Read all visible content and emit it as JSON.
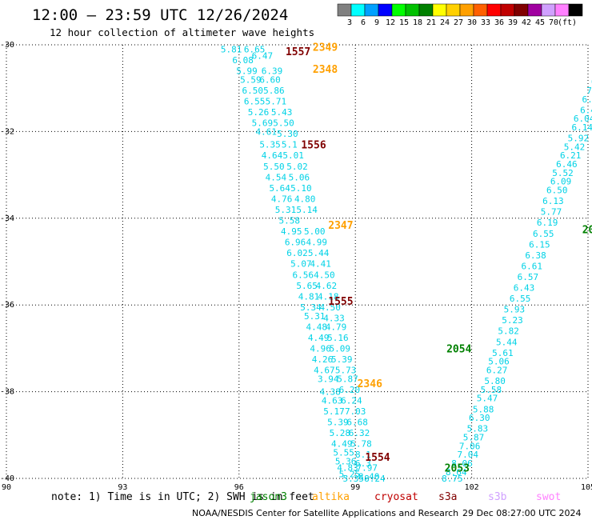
{
  "title": "12:00 – 23:59 UTC 12/26/2024",
  "subtitle": "12 hour collection of altimeter wave heights",
  "colorbar": {
    "colors": [
      "#808080",
      "#00ffff",
      "#00a0ff",
      "#0000ff",
      "#00ff00",
      "#00c000",
      "#008000",
      "#ffff00",
      "#ffd000",
      "#ffa000",
      "#ff6000",
      "#ff0000",
      "#c00000",
      "#800000",
      "#a000a0",
      "#d0a0ff",
      "#ff80ff",
      "#000000"
    ],
    "labels": [
      "3",
      "6",
      "9",
      "12",
      "15",
      "18",
      "21",
      "24",
      "27",
      "30",
      "33",
      "36",
      "39",
      "42",
      "45",
      "70",
      "(ft)"
    ]
  },
  "note": "note: 1) Time is in UTC; 2) SWH is in feet",
  "satellites": [
    {
      "name": "jason3",
      "color": "#008000"
    },
    {
      "name": "altika",
      "color": "#ffa000"
    },
    {
      "name": "cryosat",
      "color": "#c00000"
    },
    {
      "name": "s3a",
      "color": "#800000"
    },
    {
      "name": "s3b",
      "color": "#d0a0ff"
    },
    {
      "name": "swot",
      "color": "#ff80ff"
    }
  ],
  "footer_left": "NOAA/NESDIS Center for Satellite Applications and Research",
  "footer_right": "29 Dec 08:27:00 UTC 2024",
  "chart_data": {
    "type": "scatter",
    "xlim": [
      90,
      105
    ],
    "ylim": [
      -40,
      -30
    ],
    "xticks": [
      "90",
      "93",
      "96",
      "99",
      "102",
      "105"
    ],
    "yticks": [
      "-30",
      "-32",
      "-34",
      "-36",
      "-38",
      "-40"
    ],
    "grid": true,
    "value_color": "#00d2e6",
    "series": [
      {
        "name": "",
        "points": [
          [
            95.8,
            -30.1,
            "5.81"
          ],
          [
            96.4,
            -30.1,
            "6.65"
          ],
          [
            96.6,
            -30.25,
            "6.47"
          ],
          [
            96.1,
            -30.35,
            "6.08"
          ],
          [
            96.2,
            -30.6,
            "5.99"
          ],
          [
            96.85,
            -30.6,
            "6.39"
          ],
          [
            96.3,
            -30.8,
            "5.59"
          ],
          [
            96.8,
            -30.8,
            "6.60"
          ],
          [
            96.35,
            -31.05,
            "6.50"
          ],
          [
            96.9,
            -31.05,
            "5.86"
          ],
          [
            96.4,
            -31.3,
            "6.55"
          ],
          [
            96.95,
            -31.3,
            "5.71"
          ],
          [
            96.5,
            -31.55,
            "5.26"
          ],
          [
            97.1,
            -31.55,
            "5.43"
          ],
          [
            96.6,
            -31.8,
            "5.69"
          ],
          [
            97.15,
            -31.8,
            "5.50"
          ],
          [
            96.7,
            -32.0,
            "4.61"
          ],
          [
            97.25,
            -32.05,
            "5.30"
          ],
          [
            96.8,
            -32.3,
            "5.35"
          ],
          [
            97.3,
            -32.3,
            "5.1"
          ],
          [
            96.85,
            -32.55,
            "4.64"
          ],
          [
            97.4,
            -32.55,
            "5.01"
          ],
          [
            96.9,
            -32.8,
            "5.50"
          ],
          [
            97.5,
            -32.8,
            "5.02"
          ],
          [
            96.95,
            -33.05,
            "4.54"
          ],
          [
            97.55,
            -33.05,
            "5.06"
          ],
          [
            97.05,
            -33.3,
            "5.64"
          ],
          [
            97.6,
            -33.3,
            "5.10"
          ],
          [
            97.1,
            -33.55,
            "4.76"
          ],
          [
            97.7,
            -33.55,
            "4.80"
          ],
          [
            97.2,
            -33.8,
            "5.31"
          ],
          [
            97.75,
            -33.8,
            "5.14"
          ],
          [
            97.3,
            -34.05,
            "5.58"
          ],
          [
            97.35,
            -34.3,
            "4.95"
          ],
          [
            97.95,
            -34.3,
            "5.00"
          ],
          [
            97.45,
            -34.55,
            "6.96"
          ],
          [
            98.0,
            -34.55,
            "4.99"
          ],
          [
            97.5,
            -34.8,
            "6.02"
          ],
          [
            98.05,
            -34.8,
            "5.44"
          ],
          [
            97.6,
            -35.05,
            "5.07"
          ],
          [
            98.1,
            -35.05,
            "4.41"
          ],
          [
            97.65,
            -35.3,
            "6.56"
          ],
          [
            98.2,
            -35.3,
            "4.50"
          ],
          [
            97.75,
            -35.55,
            "5.65"
          ],
          [
            98.25,
            -35.55,
            "4.62"
          ],
          [
            97.8,
            -35.8,
            "4.81"
          ],
          [
            98.3,
            -35.8,
            "4.18"
          ],
          [
            97.85,
            -36.05,
            "5.34"
          ],
          [
            98.35,
            -36.05,
            "4.50"
          ],
          [
            97.95,
            -36.25,
            "5.31"
          ],
          [
            98.45,
            -36.3,
            "4.33"
          ],
          [
            98.0,
            -36.5,
            "4.48"
          ],
          [
            98.5,
            -36.5,
            "4.79"
          ],
          [
            98.05,
            -36.75,
            "4.49"
          ],
          [
            98.55,
            -36.75,
            "5.16"
          ],
          [
            98.1,
            -37.0,
            "4.96"
          ],
          [
            98.6,
            -37.0,
            "5.09"
          ],
          [
            98.15,
            -37.25,
            "4.26"
          ],
          [
            98.65,
            -37.25,
            "5.39"
          ],
          [
            98.2,
            -37.5,
            "4.67"
          ],
          [
            98.75,
            -37.5,
            "5.73"
          ],
          [
            98.3,
            -37.7,
            "3.94"
          ],
          [
            98.8,
            -37.7,
            "5.87"
          ],
          [
            98.35,
            -38.0,
            "4.38"
          ],
          [
            98.85,
            -37.95,
            "6.20"
          ],
          [
            98.4,
            -38.2,
            "4.63"
          ],
          [
            98.9,
            -38.2,
            "6.24"
          ],
          [
            98.45,
            -38.45,
            "5.17"
          ],
          [
            99.0,
            -38.45,
            "7.03"
          ],
          [
            98.55,
            -38.7,
            "5.39"
          ],
          [
            99.05,
            -38.7,
            "6.68"
          ],
          [
            98.6,
            -38.95,
            "5.28"
          ],
          [
            99.1,
            -38.95,
            "6.32"
          ],
          [
            98.65,
            -39.2,
            "4.49"
          ],
          [
            99.15,
            -39.2,
            "5.78"
          ],
          [
            98.7,
            -39.4,
            "5.55"
          ],
          [
            99.2,
            -39.45,
            "8.1"
          ],
          [
            98.75,
            -39.6,
            "5.36"
          ],
          [
            99.2,
            -39.65,
            "6.3"
          ],
          [
            98.8,
            -39.75,
            "4.83"
          ],
          [
            99.3,
            -39.75,
            "7.97"
          ],
          [
            98.85,
            -39.9,
            "5.25"
          ],
          [
            99.35,
            -39.95,
            "8.40"
          ],
          [
            98.95,
            -40.0,
            "5.35"
          ],
          [
            99.5,
            -40.0,
            "8.24"
          ],
          [
            101.5,
            -40.0,
            "8.75"
          ],
          [
            101.6,
            -39.85,
            "8.64"
          ],
          [
            101.75,
            -39.65,
            "8.06"
          ],
          [
            101.9,
            -39.45,
            "7.04"
          ],
          [
            101.95,
            -39.25,
            "7.06"
          ],
          [
            102.05,
            -39.05,
            "5.87"
          ],
          [
            102.15,
            -38.85,
            "5.83"
          ],
          [
            102.2,
            -38.6,
            "6.30"
          ],
          [
            102.3,
            -38.4,
            "5.88"
          ],
          [
            102.4,
            -38.15,
            "5.47"
          ],
          [
            102.5,
            -37.95,
            "5.58"
          ],
          [
            102.6,
            -37.75,
            "5.80"
          ],
          [
            102.65,
            -37.5,
            "6.27"
          ],
          [
            102.7,
            -37.3,
            "5.06"
          ],
          [
            102.8,
            -37.1,
            "5.61"
          ],
          [
            102.9,
            -36.85,
            "5.44"
          ],
          [
            102.95,
            -36.6,
            "5.82"
          ],
          [
            103.05,
            -36.35,
            "5.23"
          ],
          [
            103.1,
            -36.1,
            "5.93"
          ],
          [
            103.25,
            -35.85,
            "6.55"
          ],
          [
            103.35,
            -35.6,
            "6.43"
          ],
          [
            103.45,
            -35.35,
            "6.57"
          ],
          [
            103.55,
            -35.1,
            "6.61"
          ],
          [
            103.65,
            -34.85,
            "6.38"
          ],
          [
            103.75,
            -34.6,
            "6.15"
          ],
          [
            103.85,
            -34.35,
            "6.55"
          ],
          [
            103.95,
            -34.1,
            "6.19"
          ],
          [
            104.05,
            -33.85,
            "5.77"
          ],
          [
            104.1,
            -33.6,
            "6.13"
          ],
          [
            104.2,
            -33.35,
            "6.50"
          ],
          [
            104.3,
            -33.15,
            "6.09"
          ],
          [
            104.35,
            -32.95,
            "5.52"
          ],
          [
            104.45,
            -32.75,
            "6.46"
          ],
          [
            104.55,
            -32.55,
            "6.21"
          ],
          [
            104.65,
            -32.35,
            "5.42"
          ],
          [
            104.75,
            -32.15,
            "5.92"
          ],
          [
            104.85,
            -31.9,
            "6.14"
          ],
          [
            104.9,
            -31.7,
            "6.04"
          ],
          [
            105.0,
            -31.5,
            "6.4"
          ],
          [
            105.05,
            -31.25,
            "6.3"
          ],
          [
            105.1,
            -31.05,
            "7."
          ],
          [
            105.15,
            -30.85,
            "6"
          ]
        ]
      }
    ],
    "pass_labels": [
      {
        "x": 97.2,
        "y": -30.15,
        "text": "1557",
        "color": "#800000"
      },
      {
        "x": 97.9,
        "y": -30.05,
        "text": "2349",
        "color": "#ffa000"
      },
      {
        "x": 97.9,
        "y": -30.55,
        "text": "2348",
        "color": "#ffa000"
      },
      {
        "x": 97.6,
        "y": -32.3,
        "text": "1556",
        "color": "#800000"
      },
      {
        "x": 98.3,
        "y": -34.15,
        "text": "2347",
        "color": "#ffa000"
      },
      {
        "x": 98.3,
        "y": -35.9,
        "text": "1555",
        "color": "#800000"
      },
      {
        "x": 99.05,
        "y": -37.8,
        "text": "2346",
        "color": "#ffa000"
      },
      {
        "x": 99.25,
        "y": -39.5,
        "text": "1554",
        "color": "#800000"
      },
      {
        "x": 101.35,
        "y": -37.0,
        "text": "2054",
        "color": "#008000"
      },
      {
        "x": 101.3,
        "y": -39.75,
        "text": "2053",
        "color": "#008000"
      },
      {
        "x": 104.85,
        "y": -34.25,
        "text": "20",
        "color": "#008000"
      }
    ]
  }
}
